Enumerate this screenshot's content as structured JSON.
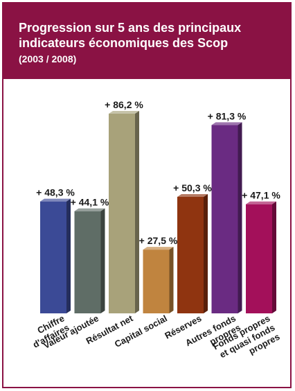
{
  "header": {
    "title": "Progression sur 5 ans des principaux indicateurs économiques des Scop",
    "subtitle": "(2003 / 2008)"
  },
  "chart_data": {
    "type": "bar",
    "title": "Progression sur 5 ans des principaux indicateurs économiques des Scop",
    "subtitle": "(2003 / 2008)",
    "categories": [
      "Chiffre d'affaires",
      "Valeur ajoutée",
      "Résultat net",
      "Capital social",
      "Réserves",
      "Autres fonds propres",
      "Fonds propres et quasi fonds propres"
    ],
    "category_lines": [
      [
        "Chiffre",
        "d'affaires"
      ],
      [
        "Valeur ajoutée"
      ],
      [
        "Résultat net"
      ],
      [
        "Capital social"
      ],
      [
        "Réserves"
      ],
      [
        "Autres fonds",
        "propres"
      ],
      [
        "Fonds propres",
        "et quasi fonds",
        "propres"
      ]
    ],
    "values": [
      48.3,
      44.1,
      86.2,
      27.5,
      50.3,
      81.3,
      47.1
    ],
    "value_labels": [
      "+ 48,3 %",
      "+ 44,1 %",
      "+ 86,2 %",
      "+ 27,5 %",
      "+ 50,3 %",
      "+ 81,3 %",
      "+ 47,1 %"
    ],
    "colors": [
      "#3b4a96",
      "#5f6d66",
      "#a8a27a",
      "#c0843f",
      "#8f3410",
      "#6a2b82",
      "#a3105a"
    ],
    "ylim": [
      0,
      90
    ],
    "grid": false,
    "legend": "none"
  }
}
